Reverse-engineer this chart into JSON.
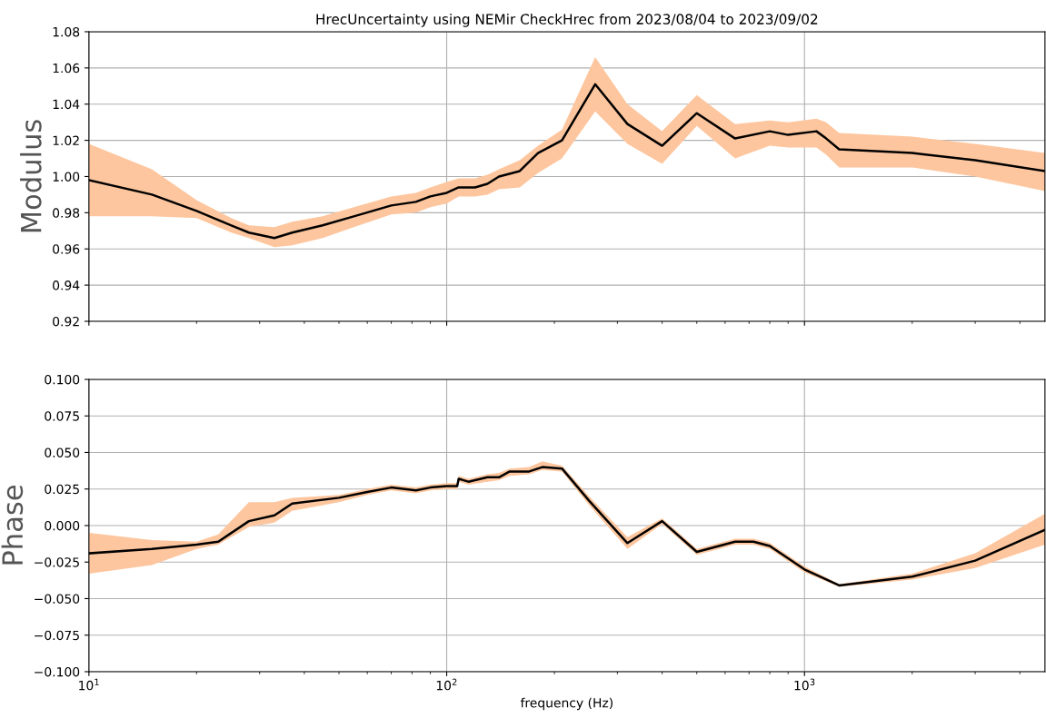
{
  "chart_data": [
    {
      "type": "line",
      "title": "HrecUncertainty using NEMir CheckHrec from 2023/08/04 to 2023/09/02",
      "ylabel": "Modulus",
      "log": "x",
      "grid": true,
      "tick_labels": "y",
      "xlim": [
        10,
        4700
      ],
      "xticks": [
        {
          "value": 10,
          "label": null
        },
        {
          "value": 100,
          "label": null
        },
        {
          "value": 1000,
          "label": null
        }
      ],
      "ylim": [
        0.92,
        1.08
      ],
      "yticks": [
        {
          "value": 0.92,
          "label": "0.92"
        },
        {
          "value": 0.94,
          "label": "0.94"
        },
        {
          "value": 0.96,
          "label": "0.96"
        },
        {
          "value": 0.98,
          "label": "0.98"
        },
        {
          "value": 1.0,
          "label": "1.00"
        },
        {
          "value": 1.02,
          "label": "1.02"
        },
        {
          "value": 1.04,
          "label": "1.04"
        },
        {
          "value": 1.06,
          "label": "1.06"
        },
        {
          "value": 1.08,
          "label": "1.08"
        }
      ],
      "series": [
        {
          "color": "#000000",
          "x": [
            10,
            15,
            20,
            25,
            28,
            33,
            37,
            45,
            55,
            70,
            82,
            90,
            100,
            108,
            120,
            130,
            140,
            160,
            180,
            210,
            260,
            320,
            400,
            500,
            640,
            800,
            900,
            1080,
            1150,
            1250,
            2000,
            3000,
            4700
          ],
          "values": [
            0.998,
            0.99,
            0.981,
            0.973,
            0.969,
            0.966,
            0.969,
            0.973,
            0.978,
            0.984,
            0.986,
            0.989,
            0.991,
            0.994,
            0.994,
            0.996,
            1.0,
            1.003,
            1.013,
            1.02,
            1.051,
            1.029,
            1.017,
            1.035,
            1.021,
            1.025,
            1.023,
            1.025,
            1.021,
            1.015,
            1.013,
            1.009,
            1.003
          ],
          "lower": [
            0.978,
            0.978,
            0.977,
            0.969,
            0.966,
            0.961,
            0.962,
            0.966,
            0.972,
            0.979,
            0.98,
            0.983,
            0.985,
            0.989,
            0.989,
            0.99,
            0.993,
            0.994,
            1.002,
            1.01,
            1.036,
            1.018,
            1.007,
            1.028,
            1.01,
            1.017,
            1.016,
            1.016,
            1.012,
            1.005,
            1.005,
            1.0,
            0.992
          ],
          "upper": [
            1.018,
            1.004,
            0.987,
            0.977,
            0.973,
            0.972,
            0.975,
            0.978,
            0.983,
            0.989,
            0.991,
            0.994,
            0.997,
            0.999,
            0.999,
            1.001,
            1.004,
            1.009,
            1.017,
            1.026,
            1.066,
            1.04,
            1.025,
            1.045,
            1.029,
            1.031,
            1.03,
            1.032,
            1.03,
            1.024,
            1.022,
            1.018,
            1.013
          ]
        }
      ]
    },
    {
      "type": "line",
      "xlabel": "frequency (Hz)",
      "ylabel": "Phase",
      "log": "x",
      "grid": true,
      "xlim": [
        10,
        4700
      ],
      "xticks": [
        {
          "value": 10,
          "label": "10$^{1}$"
        },
        {
          "value": 100,
          "label": "10$^{2}$"
        },
        {
          "value": 1000,
          "label": "10$^{3}$"
        }
      ],
      "ylim": [
        -0.1,
        0.1
      ],
      "yticks": [
        {
          "value": -0.1,
          "label": "−0.100"
        },
        {
          "value": -0.075,
          "label": "−0.075"
        },
        {
          "value": -0.05,
          "label": "−0.050"
        },
        {
          "value": -0.025,
          "label": "−0.025"
        },
        {
          "value": 0,
          "label": "0.000"
        },
        {
          "value": 0.025,
          "label": "0.025"
        },
        {
          "value": 0.05,
          "label": "0.050"
        },
        {
          "value": 0.075,
          "label": "0.075"
        },
        {
          "value": 0.1,
          "label": "0.100"
        }
      ],
      "series": [
        {
          "color": "#000000",
          "x": [
            10,
            15,
            20,
            23,
            28,
            33,
            37,
            50,
            60,
            70,
            82,
            90,
            100,
            107,
            108,
            115,
            130,
            140,
            150,
            170,
            185,
            210,
            250,
            320,
            400,
            500,
            640,
            720,
            800,
            1000,
            1250,
            2000,
            3000,
            4700
          ],
          "values": [
            -0.019,
            -0.016,
            -0.013,
            -0.011,
            0.003,
            0.007,
            0.015,
            0.019,
            0.023,
            0.026,
            0.024,
            0.026,
            0.027,
            0.027,
            0.032,
            0.03,
            0.033,
            0.033,
            0.037,
            0.037,
            0.04,
            0.039,
            0.017,
            -0.012,
            0.003,
            -0.018,
            -0.011,
            -0.011,
            -0.014,
            -0.03,
            -0.041,
            -0.035,
            -0.024,
            -0.003
          ],
          "lower": [
            -0.033,
            -0.027,
            -0.016,
            -0.013,
            -0.001,
            0.002,
            0.01,
            0.016,
            0.021,
            0.024,
            0.022,
            0.024,
            0.025,
            0.025,
            0.03,
            0.028,
            0.03,
            0.031,
            0.034,
            0.035,
            0.038,
            0.037,
            0.014,
            -0.016,
            0.001,
            -0.02,
            -0.013,
            -0.013,
            -0.016,
            -0.032,
            -0.042,
            -0.037,
            -0.029,
            -0.013
          ],
          "upper": [
            -0.005,
            -0.01,
            -0.011,
            -0.006,
            0.016,
            0.016,
            0.019,
            0.021,
            0.025,
            0.028,
            0.026,
            0.028,
            0.029,
            0.029,
            0.034,
            0.032,
            0.035,
            0.036,
            0.039,
            0.04,
            0.044,
            0.041,
            0.02,
            -0.008,
            0.005,
            -0.016,
            -0.009,
            -0.009,
            -0.012,
            -0.028,
            -0.04,
            -0.033,
            -0.019,
            0.008
          ]
        }
      ]
    }
  ]
}
